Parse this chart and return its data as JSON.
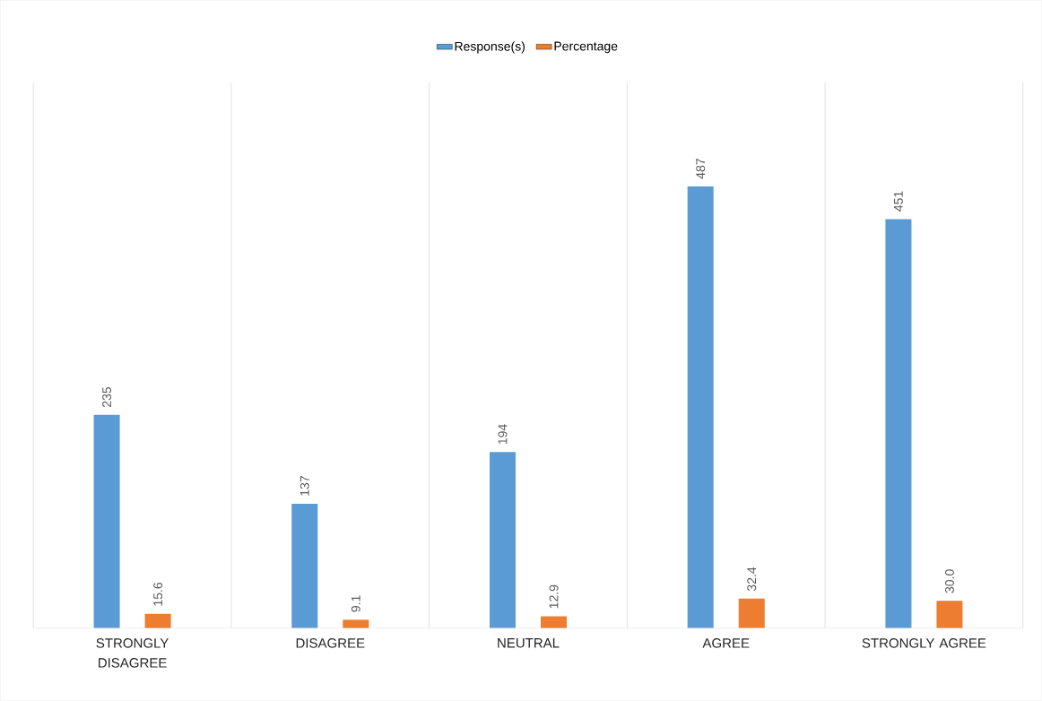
{
  "chart_data": {
    "type": "bar",
    "categories": [
      "STRONGLY DISAGREE",
      "DISAGREE",
      "NEUTRAL",
      "AGREE",
      "STRONGLY AGREE"
    ],
    "series": [
      {
        "name": "Response(s)",
        "color": "#5b9bd5",
        "values": [
          235,
          137,
          194,
          487,
          451
        ],
        "value_labels": [
          "235",
          "137",
          "194",
          "487",
          "451"
        ]
      },
      {
        "name": "Percentage",
        "color": "#ed7d31",
        "values": [
          15.6,
          9.1,
          12.9,
          32.4,
          30
        ],
        "value_labels": [
          "15.6",
          "9.1",
          "12.9",
          "32.4",
          "30.0"
        ]
      }
    ],
    "grid": "x",
    "legend": "top"
  }
}
